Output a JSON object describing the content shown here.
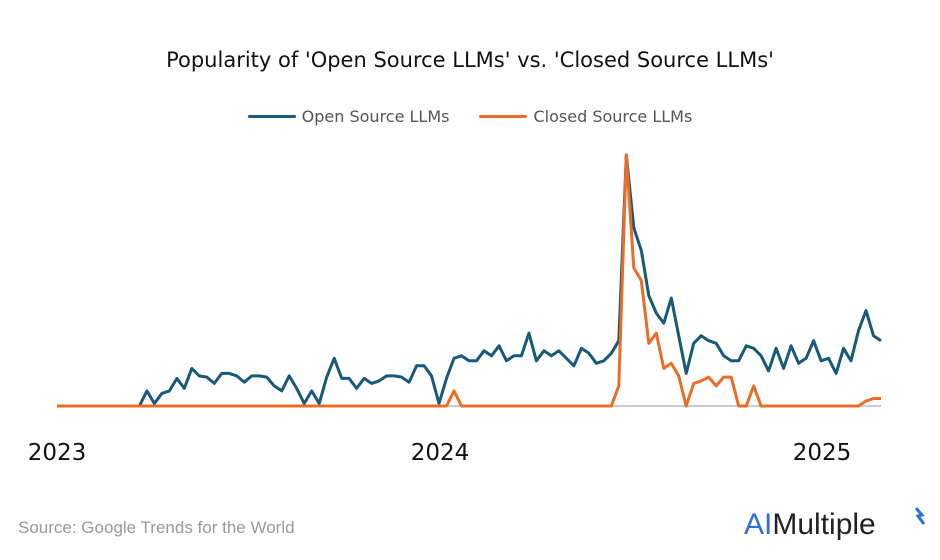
{
  "chart_data": {
    "type": "line",
    "title": "Popularity of 'Open Source LLMs'  vs. 'Closed Source LLMs'",
    "xlabel": "",
    "ylabel": "",
    "ylim": [
      0,
      100
    ],
    "grid": false,
    "legend_position": "top",
    "x_tick_labels": [
      "2023",
      "2024",
      "2025"
    ],
    "x_tick_dates": [
      "2023-01-01",
      "2023-12-31",
      "2025-01-05"
    ],
    "x": [
      "2023-01-01",
      "2023-01-08",
      "2023-01-15",
      "2023-01-22",
      "2023-01-29",
      "2023-02-05",
      "2023-02-12",
      "2023-02-19",
      "2023-02-26",
      "2023-03-05",
      "2023-03-12",
      "2023-03-19",
      "2023-03-26",
      "2023-04-02",
      "2023-04-09",
      "2023-04-16",
      "2023-04-23",
      "2023-04-30",
      "2023-05-07",
      "2023-05-14",
      "2023-05-21",
      "2023-05-28",
      "2023-06-04",
      "2023-06-11",
      "2023-06-18",
      "2023-06-25",
      "2023-07-02",
      "2023-07-09",
      "2023-07-16",
      "2023-07-23",
      "2023-07-30",
      "2023-08-06",
      "2023-08-13",
      "2023-08-20",
      "2023-08-27",
      "2023-09-03",
      "2023-09-10",
      "2023-09-17",
      "2023-09-24",
      "2023-10-01",
      "2023-10-08",
      "2023-10-15",
      "2023-10-22",
      "2023-10-29",
      "2023-11-05",
      "2023-11-12",
      "2023-11-19",
      "2023-11-26",
      "2023-12-03",
      "2023-12-10",
      "2023-12-17",
      "2023-12-24",
      "2023-12-31",
      "2024-01-07",
      "2024-01-14",
      "2024-01-21",
      "2024-01-28",
      "2024-02-04",
      "2024-02-11",
      "2024-02-18",
      "2024-02-25",
      "2024-03-03",
      "2024-03-10",
      "2024-03-17",
      "2024-03-24",
      "2024-03-31",
      "2024-04-07",
      "2024-04-14",
      "2024-04-21",
      "2024-04-28",
      "2024-05-05",
      "2024-05-12",
      "2024-05-19",
      "2024-05-26",
      "2024-06-02",
      "2024-06-09",
      "2024-06-16",
      "2024-06-23",
      "2024-06-30",
      "2024-07-07",
      "2024-07-14",
      "2024-07-21",
      "2024-07-28",
      "2024-08-04",
      "2024-08-11",
      "2024-08-18",
      "2024-08-25",
      "2024-09-01",
      "2024-09-08",
      "2024-09-15",
      "2024-09-22",
      "2024-09-29",
      "2024-10-06",
      "2024-10-13",
      "2024-10-20",
      "2024-10-27",
      "2024-11-03",
      "2024-11-10",
      "2024-11-17",
      "2024-11-24",
      "2024-12-01",
      "2024-12-08",
      "2024-12-15",
      "2024-12-22",
      "2024-12-29",
      "2025-01-05",
      "2025-01-12",
      "2025-01-19",
      "2025-01-26",
      "2025-02-02",
      "2025-02-09"
    ],
    "series": [
      {
        "name": "Open Source LLMs",
        "color": "#17597a",
        "values": [
          0,
          0,
          0,
          0,
          0,
          0,
          0,
          0,
          0,
          0,
          0,
          0,
          6,
          1,
          5,
          6,
          11,
          7,
          15,
          12,
          11.5,
          9,
          13,
          13,
          12,
          9.5,
          12,
          12,
          11.5,
          8,
          6,
          12,
          7,
          1,
          6,
          1,
          11.5,
          19,
          11,
          11,
          7,
          11,
          9,
          10,
          12,
          12,
          11.5,
          9.5,
          16,
          16,
          12,
          1,
          11,
          19,
          20,
          18,
          18,
          22,
          20,
          24,
          18,
          20,
          20,
          29,
          18,
          22,
          20,
          22,
          19,
          16,
          23,
          21,
          17,
          18,
          21,
          26,
          100,
          71,
          62,
          44,
          37,
          33,
          43,
          28,
          13,
          25,
          28,
          26,
          25,
          20,
          18,
          18,
          24,
          23,
          20,
          14,
          23,
          15,
          24,
          17,
          19,
          26,
          18,
          19,
          13,
          23,
          18,
          30,
          38,
          28,
          26
        ]
      },
      {
        "name": "Closed Source LLMs",
        "color": "#ea6c27",
        "values": [
          0,
          0,
          0,
          0,
          0,
          0,
          0,
          0,
          0,
          0,
          0,
          0,
          0,
          0,
          0,
          0,
          0,
          0,
          0,
          0,
          0,
          0,
          0,
          0,
          0,
          0,
          0,
          0,
          0,
          0,
          0,
          0,
          0,
          0,
          0,
          0,
          0,
          0,
          0,
          0,
          0,
          0,
          0,
          0,
          0,
          0,
          0,
          0,
          0,
          0,
          0,
          0,
          0,
          6,
          0,
          0,
          0,
          0,
          0,
          0,
          0,
          0,
          0,
          0,
          0,
          0,
          0,
          0,
          0,
          0,
          0,
          0,
          0,
          0,
          0,
          8,
          100,
          55,
          50,
          25,
          29,
          15,
          17,
          12,
          0,
          9,
          10,
          11.5,
          8,
          11.5,
          11.5,
          0,
          0,
          8,
          0,
          0,
          0,
          0,
          0,
          0,
          0,
          0,
          0,
          0,
          0,
          0,
          0,
          0,
          2,
          3,
          3
        ]
      }
    ]
  },
  "footer": {
    "source": "Source: Google Trends for the World",
    "logo_text": "AIMultiple",
    "logo_ai": "AI",
    "logo_rest": "Multiple"
  }
}
